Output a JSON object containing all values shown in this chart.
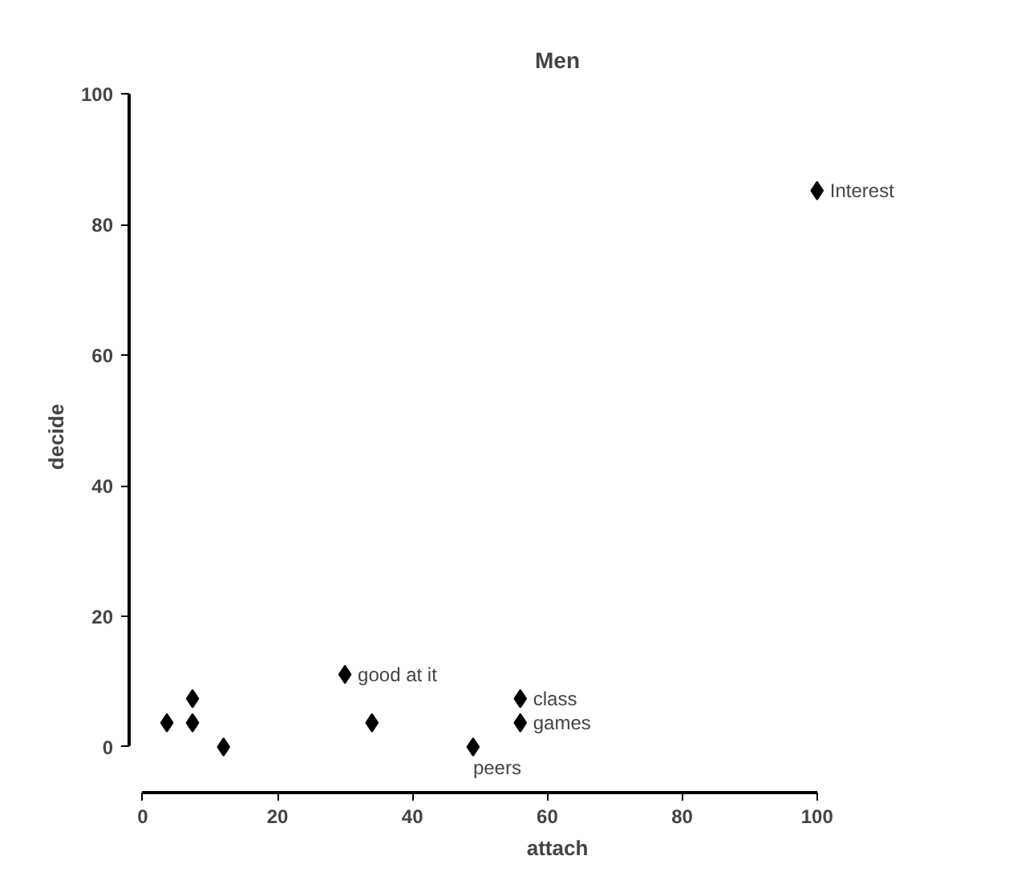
{
  "chart_data": {
    "type": "scatter",
    "title": "Men",
    "xlabel": "attach",
    "ylabel": "decide",
    "x": [
      3.6,
      7.4,
      7.4,
      12,
      30,
      34,
      49,
      56,
      56,
      100
    ],
    "values": [
      3.7,
      7.4,
      3.7,
      0,
      11.1,
      3.7,
      0,
      7.4,
      3.7,
      85.2
    ],
    "color": "#000000",
    "marker": "diamond",
    "xlim": [
      0,
      100
    ],
    "ylim": [
      0,
      100
    ],
    "xticks": [
      0,
      20,
      40,
      60,
      80,
      100
    ],
    "yticks": [
      0,
      20,
      40,
      60,
      80,
      100
    ],
    "grid": false,
    "annotations": [
      {
        "text": "Interest",
        "x": 100,
        "y": 85.2
      },
      {
        "text": "good at it",
        "x": 30,
        "y": 11.1
      },
      {
        "text": "class",
        "x": 56,
        "y": 7.4
      },
      {
        "text": "games",
        "x": 56,
        "y": 3.7
      },
      {
        "text": "peers",
        "x": 49,
        "y": 0
      }
    ]
  }
}
